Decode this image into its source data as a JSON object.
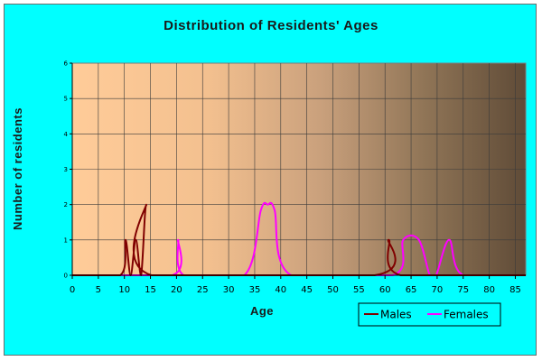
{
  "chart_data": {
    "type": "line",
    "title": "Distribution of Residents' Ages",
    "xlabel": "Age",
    "ylabel": "Number of residents",
    "xlim": [
      0,
      87
    ],
    "ylim": [
      0,
      6
    ],
    "x_ticks": [
      "0",
      "5",
      "10",
      "15",
      "20",
      "25",
      "30",
      "35",
      "40",
      "45",
      "50",
      "55",
      "60",
      "65",
      "70",
      "75",
      "80",
      "85"
    ],
    "y_ticks": [
      "0",
      "1",
      "2",
      "3",
      "4",
      "5",
      "6"
    ],
    "grid": true,
    "legend_position": "bottom-right",
    "background": "gradient tan to dark brown",
    "series": [
      {
        "name": "Males",
        "color": "#800000",
        "points": [
          [
            0,
            0
          ],
          [
            9.2,
            0
          ],
          [
            10.2,
            1
          ],
          [
            11.2,
            0
          ],
          [
            12.2,
            1
          ],
          [
            13.2,
            0
          ],
          [
            14.2,
            2
          ],
          [
            15.2,
            0
          ],
          [
            58,
            0
          ],
          [
            60.7,
            1
          ],
          [
            63,
            0
          ],
          [
            87,
            0
          ]
        ]
      },
      {
        "name": "Females",
        "color": "#ff00ff",
        "points": [
          [
            0,
            0
          ],
          [
            19.2,
            0
          ],
          [
            20.3,
            1
          ],
          [
            21.4,
            0
          ],
          [
            33,
            0
          ],
          [
            36.2,
            1.85
          ],
          [
            37.5,
            2
          ],
          [
            38.8,
            1.85
          ],
          [
            42,
            0
          ],
          [
            61.5,
            0
          ],
          [
            63.5,
            1
          ],
          [
            66.5,
            1
          ],
          [
            68.6,
            0
          ],
          [
            69.8,
            0
          ],
          [
            72.3,
            1
          ],
          [
            75,
            0
          ],
          [
            87,
            0
          ]
        ]
      }
    ]
  }
}
